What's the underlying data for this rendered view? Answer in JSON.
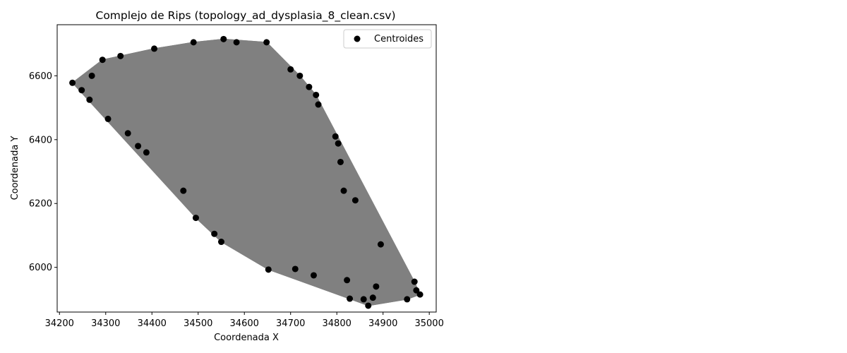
{
  "chart_data": {
    "type": "scatter",
    "title": "Complejo de Rips (topology_ad_dysplasia_8_clean.csv)",
    "xlabel": "Coordenada X",
    "ylabel": "Coordenada Y",
    "xlim": [
      34195,
      35015
    ],
    "ylim": [
      5860,
      6760
    ],
    "xticks": [
      34200,
      34300,
      34400,
      34500,
      34600,
      34700,
      34800,
      34900,
      35000
    ],
    "yticks": [
      6000,
      6200,
      6400,
      6600
    ],
    "grid": false,
    "legend": {
      "position": "top-right",
      "entries": [
        "Centroides"
      ]
    },
    "colors": {
      "points": "#000000",
      "edges": "#808080",
      "fill": "#808080"
    },
    "series": [
      {
        "name": "Centroides",
        "x": [
          34228,
          34248,
          34265,
          34270,
          34293,
          34305,
          34332,
          34348,
          34370,
          34388,
          34405,
          34468,
          34490,
          34495,
          34535,
          34550,
          34555,
          34583,
          34648,
          34652,
          34700,
          34710,
          34720,
          34740,
          34750,
          34755,
          34760,
          34797,
          34803,
          34808,
          34815,
          34822,
          34828,
          34840,
          34858,
          34868,
          34878,
          34885,
          34895,
          34952,
          34968,
          34972,
          34980
        ],
        "y": [
          6578,
          6555,
          6525,
          6600,
          6650,
          6465,
          6662,
          6420,
          6380,
          6360,
          6685,
          6240,
          6705,
          6155,
          6105,
          6080,
          6715,
          6705,
          6705,
          5993,
          6620,
          5995,
          6600,
          6565,
          5975,
          6540,
          6510,
          6410,
          6388,
          6330,
          6240,
          5960,
          5902,
          6210,
          5900,
          5880,
          5905,
          5940,
          6072,
          5900,
          5955,
          5928,
          5915
        ]
      }
    ]
  }
}
